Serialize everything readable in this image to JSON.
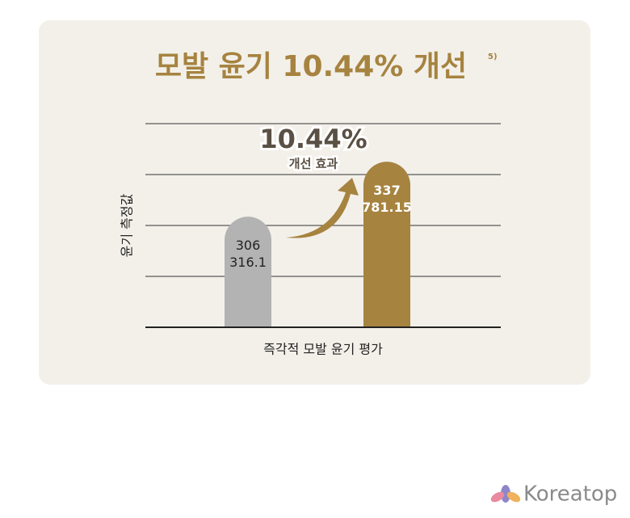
{
  "chart_data": {
    "type": "bar",
    "title": "모발 윤기 10.44% 개선",
    "title_note": "5)",
    "y_label": "윤기 측정값",
    "x_label": "즉각적 모발 윤기 평가",
    "annotation": "10.44%",
    "annotation_sub": "개선 효과",
    "categories": [
      null,
      null
    ],
    "values": [
      306316.1,
      337781.15
    ],
    "value_labels": [
      "306\n316.1",
      "337\n781.15"
    ],
    "colors": [
      "#b3b3b3",
      "#a6833f"
    ],
    "ylim": [
      243000,
      359600
    ],
    "watermark": "Koreatop"
  }
}
